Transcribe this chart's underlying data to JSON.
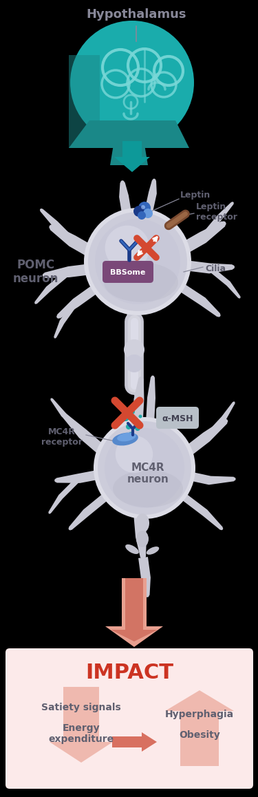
{
  "bg_color": "#000000",
  "teal_dark": "#1a8888",
  "teal_color": "#1aacac",
  "teal_mid": "#0d9999",
  "brain_outline": "#5ec8c8",
  "neuron_outer": "#e0e0e8",
  "neuron_mid": "#d0d0dc",
  "neuron_inner": "#c4c4d0",
  "neuron_bottom": "#b8b8c8",
  "dendrite_c": "#c8c8d4",
  "text_dark": "#606070",
  "text_label": "#707080",
  "red_orange": "#d44830",
  "bbsome_color": "#7a4878",
  "blue_dark": "#1a3a88",
  "blue_mid": "#3366bb",
  "blue_light": "#6699dd",
  "teal_dot": "#22aaaa",
  "receptor_blue": "#5588cc",
  "receptor_blue2": "#7aafee",
  "brown_dark": "#7a4a30",
  "brown_light": "#9a6644",
  "msh_bg": "#b8c0c8",
  "msh_text": "#404050",
  "arrow_salmon_light": "#e8a090",
  "arrow_salmon_mid": "#d87060",
  "arrow_salmon_dark": "#c05040",
  "impact_bg": "#fceaea",
  "impact_title": "#cc3322",
  "white": "#ffffff",
  "title": "Hypothalamus",
  "leptin_label": "Leptin",
  "leptin_receptor_label": "Leptin\nreceptor",
  "cilia_label": "Cilia",
  "bbsome_label": "BBSome",
  "pomc_label": "POMC\nneuron",
  "alpha_msh_label": "α-MSH",
  "mc4r_receptor_label": "MC4R\nreceptor",
  "mc4r_neuron_label": "MC4R\nneuron",
  "impact_title_text": "IMPACT",
  "satiety_label": "Satiety signals",
  "energy_label": "Energy\nexpenditure",
  "hyperphagia_label": "Hyperphagia",
  "obesity_label": "Obesity"
}
